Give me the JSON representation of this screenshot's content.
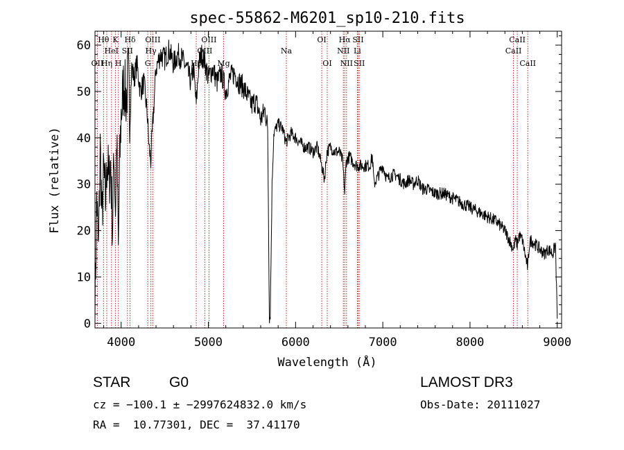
{
  "chart_data": {
    "type": "line",
    "title": "spec-55862-M6201_sp10-210.fits",
    "xlabel": "Wavelength (Å)",
    "ylabel": "Flux (relative)",
    "xlim": [
      3700,
      9050
    ],
    "ylim": [
      -1,
      63
    ],
    "xticks": [
      4000,
      5000,
      6000,
      7000,
      8000,
      9000
    ],
    "yticks": [
      0,
      10,
      20,
      30,
      40,
      50,
      60
    ],
    "series": [
      {
        "name": "flux",
        "x": [
          3700,
          3720,
          3740,
          3760,
          3780,
          3800,
          3820,
          3840,
          3860,
          3880,
          3900,
          3920,
          3935,
          3950,
          3968,
          3980,
          4000,
          4030,
          4060,
          4080,
          4102,
          4120,
          4150,
          4180,
          4220,
          4260,
          4300,
          4320,
          4340,
          4360,
          4400,
          4450,
          4500,
          4550,
          4600,
          4650,
          4700,
          4750,
          4800,
          4830,
          4861,
          4890,
          4920,
          4950,
          5000,
          5050,
          5100,
          5150,
          5200,
          5250,
          5300,
          5350,
          5400,
          5450,
          5500,
          5530,
          5560,
          5600,
          5650,
          5680,
          5700,
          5710,
          5730,
          5750,
          5800,
          5850,
          5890,
          5920,
          5950,
          6000,
          6050,
          6100,
          6150,
          6200,
          6250,
          6300,
          6330,
          6360,
          6400,
          6450,
          6500,
          6540,
          6563,
          6580,
          6620,
          6650,
          6700,
          6750,
          6800,
          6850,
          6880,
          6900,
          6950,
          7000,
          7050,
          7100,
          7150,
          7200,
          7250,
          7300,
          7350,
          7400,
          7450,
          7500,
          7600,
          7700,
          7800,
          7900,
          8000,
          8100,
          8200,
          8300,
          8400,
          8450,
          8498,
          8520,
          8542,
          8560,
          8600,
          8640,
          8662,
          8680,
          8700,
          8750,
          8800,
          8850,
          8900,
          8950,
          8980,
          9000
        ],
        "y": [
          2,
          28,
          15,
          38,
          22,
          33,
          26,
          36,
          30,
          35,
          20,
          38,
          24,
          40,
          15,
          32,
          45,
          52,
          48,
          54,
          44,
          55,
          53,
          56,
          50,
          52,
          45,
          38,
          35,
          42,
          55,
          58,
          57,
          59,
          56,
          58,
          57,
          55,
          52,
          55,
          47,
          56,
          58,
          57,
          53,
          55,
          52,
          54,
          50,
          53,
          54,
          52,
          51,
          49,
          47,
          48,
          47,
          44,
          46,
          42,
          1,
          2,
          30,
          41,
          43,
          42,
          39,
          40,
          41,
          40,
          39,
          38,
          38,
          37,
          38,
          34,
          31,
          37,
          38,
          37,
          37,
          35,
          28,
          35,
          36,
          35,
          34,
          34,
          34,
          34,
          36,
          30,
          32,
          34,
          31,
          32,
          32,
          31,
          30,
          31,
          30,
          31,
          29,
          29,
          28,
          28,
          27,
          26,
          25,
          24,
          23,
          22,
          20,
          18,
          16,
          18,
          17,
          19,
          18,
          14,
          12,
          17,
          18,
          17,
          16,
          15,
          16,
          15,
          17,
          1
        ],
        "color": "#000000"
      }
    ],
    "lines": [
      {
        "label": "Hθ",
        "wave": 3798,
        "row": 1
      },
      {
        "label": "OII",
        "wave": 3727,
        "row": 3
      },
      {
        "label": "Hη",
        "wave": 3835,
        "row": 3
      },
      {
        "label": "HeI",
        "wave": 3889,
        "row": 2
      },
      {
        "label": "K",
        "wave": 3934,
        "row": 1
      },
      {
        "label": "SII",
        "wave": 4072,
        "row": 2
      },
      {
        "label": "H",
        "wave": 3968,
        "row": 3
      },
      {
        "label": "Hδ",
        "wave": 4102,
        "row": 1
      },
      {
        "label": "OIII",
        "wave": 4363,
        "row": 1
      },
      {
        "label": "Hγ",
        "wave": 4341,
        "row": 2
      },
      {
        "label": "G",
        "wave": 4305,
        "row": 3
      },
      {
        "label": "OIII",
        "wave": 5007,
        "row": 1
      },
      {
        "label": "OIII",
        "wave": 4959,
        "row": 2
      },
      {
        "label": "Hβ",
        "wave": 4861,
        "row": 3
      },
      {
        "label": "Mg",
        "wave": 5175,
        "row": 3
      },
      {
        "label": "Na",
        "wave": 5894,
        "row": 2
      },
      {
        "label": "OI",
        "wave": 6300,
        "row": 1
      },
      {
        "label": "OI",
        "wave": 6363,
        "row": 3
      },
      {
        "label": "Hα",
        "wave": 6563,
        "row": 1
      },
      {
        "label": "NII",
        "wave": 6548,
        "row": 2
      },
      {
        "label": "NII",
        "wave": 6584,
        "row": 3
      },
      {
        "label": "SII",
        "wave": 6717,
        "row": 1
      },
      {
        "label": "Li",
        "wave": 6708,
        "row": 2
      },
      {
        "label": "SII",
        "wave": 6731,
        "row": 3
      },
      {
        "label": "CaII",
        "wave": 8542,
        "row": 1
      },
      {
        "label": "CaII",
        "wave": 8498,
        "row": 2
      },
      {
        "label": "CaII",
        "wave": 8662,
        "row": 3
      }
    ]
  },
  "info": {
    "object_class": "STAR",
    "subclass": "G0",
    "survey": "LAMOST DR3",
    "velocity": "cz = −100.1 ± −2997624832.0 km/s",
    "obs_date": "Obs-Date: 20111027",
    "coords": "RA =  10.77301, DEC =  37.41170"
  },
  "colors": {
    "line_marker": "#b22222",
    "spectrum": "#000000"
  }
}
